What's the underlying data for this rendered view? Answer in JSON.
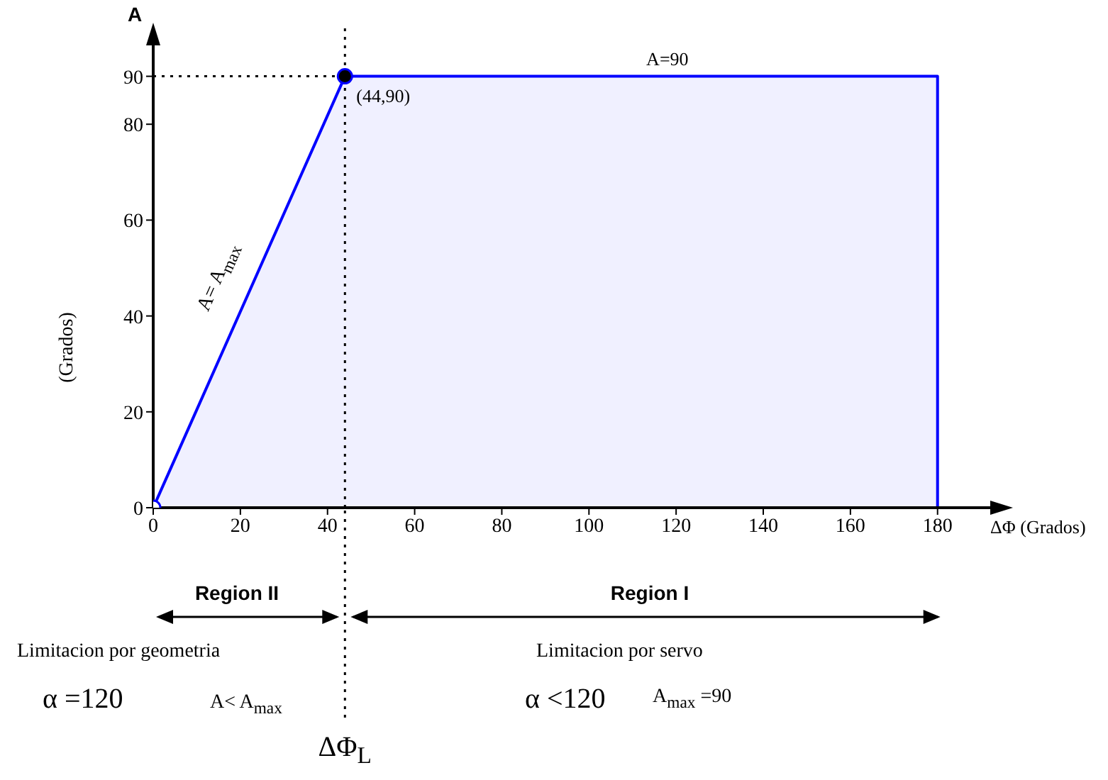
{
  "chart_data": {
    "type": "area",
    "ylabel": "A",
    "xlabel": "ΔΦ (Grados)",
    "series": [
      {
        "color": "#0000ff",
        "x": [
          0,
          44,
          180,
          180
        ],
        "values": [
          0,
          90,
          90,
          0
        ]
      },
      {
        "type": "scatter",
        "color": "#000000",
        "colors": [
          "#ffffff",
          "#000000"
        ],
        "x": [
          0,
          44
        ],
        "values": [
          0,
          90
        ]
      }
    ],
    "xlim": [
      0,
      196
    ],
    "xticks": [
      0,
      20,
      40,
      60,
      80,
      100,
      120,
      140,
      160,
      180
    ],
    "ylim": [
      0,
      100
    ],
    "yticks": [
      0,
      20,
      40,
      60,
      80,
      90
    ],
    "ref_lines": [
      {
        "axis": "x",
        "value": 44,
        "color": "#000000",
        "line_style": "dotted"
      },
      {
        "axis": "y",
        "value": 90,
        "color": "#000000",
        "line_style": "dotted"
      }
    ],
    "annotations": [
      {
        "text": "A=90",
        "x": 118,
        "y": 90
      },
      {
        "text": "(44,90)",
        "x": 44,
        "y": 90
      },
      {
        "text": "A= A$_{max}$",
        "x": 20,
        "y": 42
      },
      "(Grados)",
      "Region II",
      "Region I",
      "Limitacion por geometria",
      "Limitacion por servo",
      "α =120",
      "A< A$_{max}$",
      "α <120",
      "A$_{max}$ =90",
      "ΔΦ$_{L}$"
    ],
    "grid": false,
    "legend": false
  }
}
